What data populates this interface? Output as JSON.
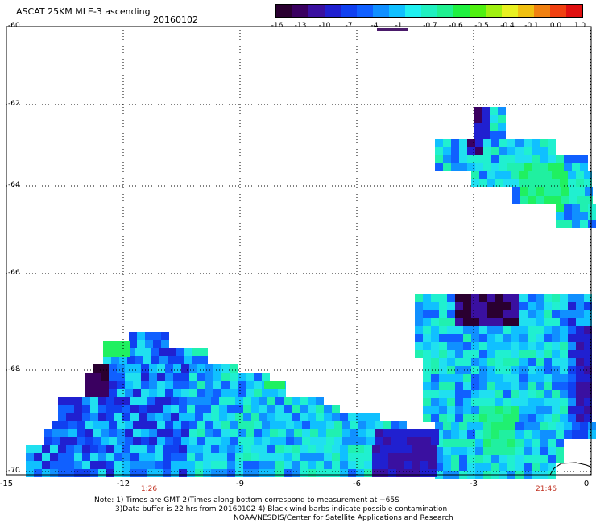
{
  "title": "ASCAT 25KM MLE-3 ascending",
  "date": "20160102",
  "colorbar": {
    "colors": [
      "#2a0030",
      "#3a0060",
      "#3a10a0",
      "#2020d0",
      "#1040f0",
      "#1060ff",
      "#1090ff",
      "#10c0ff",
      "#20f0f0",
      "#20f0c0",
      "#20f090",
      "#20f040",
      "#50f010",
      "#a0f010",
      "#e8f020",
      "#f0c010",
      "#f08010",
      "#f04010",
      "#e01010"
    ],
    "ticks": [
      "-16",
      "-13",
      "-10",
      "-7",
      "-4",
      "-1",
      "-0.7",
      "-0.6",
      "-0.5",
      "-0.4",
      "-0.1",
      "0.0",
      "1.0"
    ]
  },
  "axes": {
    "lat_labels": [
      "-60",
      "-62",
      "-64",
      "-66",
      "-68",
      "-70"
    ],
    "lon_labels": [
      "-15",
      "-12",
      "-9",
      "-6",
      "-3",
      "0"
    ],
    "time_labels": [
      "1:26",
      "21:46"
    ]
  },
  "notes": {
    "line1": "Note: 1) Times are GMT 2)Times along bottom correspond to measurement at −65S",
    "line2": "3)Data buffer is 22 hrs from 20160102 4) Black wind barbs indicate possible contamination",
    "line3": "NOAA/NESDIS/Center for Satellite Applications and Research"
  }
}
